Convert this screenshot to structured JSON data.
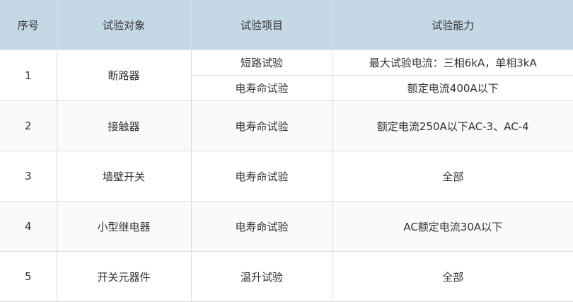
{
  "colors": {
    "header_bg": "#c5d8e6",
    "border": "#dcdcdc",
    "text": "#333333"
  },
  "headers": [
    "序号",
    "试验对象",
    "试验项目",
    "试验能力"
  ],
  "rows": [
    {
      "no": "1",
      "object": "断路器",
      "items": [
        {
          "item": "短路试验",
          "capability": "最大试验电流：三相6kA，单相3kA"
        },
        {
          "item": "电寿命试验",
          "capability": "额定电流400A以下"
        }
      ]
    },
    {
      "no": "2",
      "object": "接触器",
      "items": [
        {
          "item": "电寿命试验",
          "capability": "额定电流250A以下AC-3、AC-4"
        }
      ]
    },
    {
      "no": "3",
      "object": "墙壁开关",
      "items": [
        {
          "item": "电寿命试验",
          "capability": "全部"
        }
      ]
    },
    {
      "no": "4",
      "object": "小型继电器",
      "items": [
        {
          "item": "电寿命试验",
          "capability": "AC额定电流30A以下"
        }
      ]
    },
    {
      "no": "5",
      "object": "开关元器件",
      "items": [
        {
          "item": "温升试验",
          "capability": "全部"
        }
      ]
    }
  ]
}
